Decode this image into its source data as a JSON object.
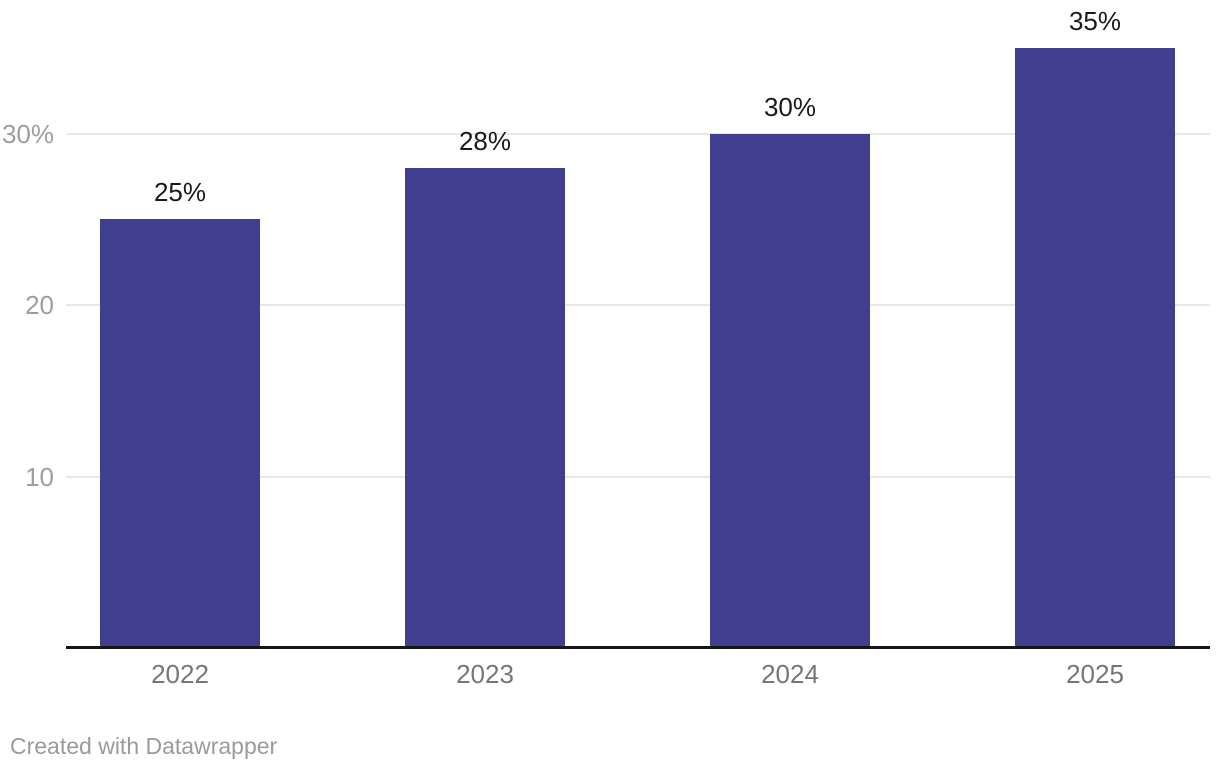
{
  "chart_data": {
    "type": "bar",
    "categories": [
      "2022",
      "2023",
      "2024",
      "2025"
    ],
    "values": [
      25,
      28,
      30,
      35
    ],
    "value_labels": [
      "25%",
      "28%",
      "30%",
      "35%"
    ],
    "title": "",
    "xlabel": "",
    "ylabel": "",
    "ylim": [
      0,
      37.8
    ],
    "yticks": [
      {
        "value": 10,
        "label": "10"
      },
      {
        "value": 20,
        "label": "20"
      },
      {
        "value": 30,
        "label": "30%"
      }
    ],
    "grid": "horizontal",
    "legend": "none"
  },
  "colors": {
    "bar": "#3f3e8f",
    "gridline": "#e8e8e8",
    "baseline": "#161616",
    "y_tick_label": "#9e9e9e",
    "x_tick_label": "#767676",
    "value_label": "#1a1a1a",
    "footer_text": "#9b9b9b"
  },
  "footer": {
    "text": "Created with Datawrapper"
  }
}
